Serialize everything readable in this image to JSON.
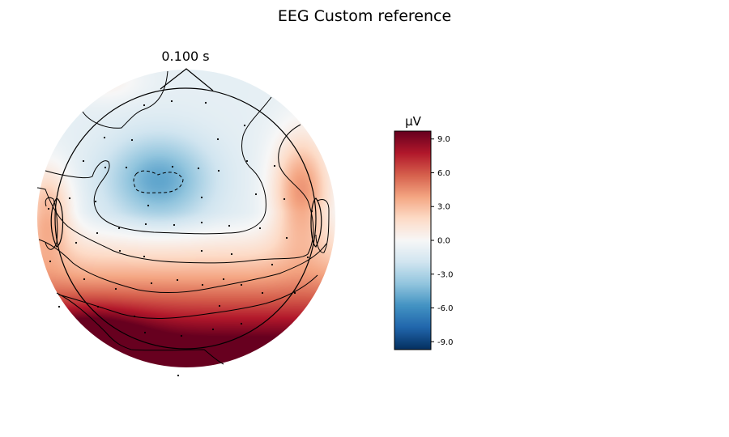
{
  "figure": {
    "suptitle": "EEG Custom reference"
  },
  "chart_data": {
    "type": "heatmap",
    "title": "0.100 s",
    "colorbar": {
      "unit_label": "µV",
      "range": [
        -9.7,
        9.7
      ],
      "ticks": [
        9.0,
        6.0,
        3.0,
        0.0,
        -3.0,
        -6.0,
        -9.0
      ],
      "tick_labels": [
        "9.0",
        "6.0",
        "3.0",
        "0.0",
        "-3.0",
        "-6.0",
        "-9.0"
      ],
      "colormap": "RdBu_r",
      "colors": [
        "#053061",
        "#2166ac",
        "#4393c3",
        "#92c5de",
        "#d1e5f0",
        "#f7f7f7",
        "#fddbc7",
        "#f4a582",
        "#d6604d",
        "#b2182b",
        "#67001f"
      ]
    },
    "map": {
      "description_kind": "scalp topography",
      "min_region": "fronto-central",
      "max_region": "posterior"
    }
  }
}
